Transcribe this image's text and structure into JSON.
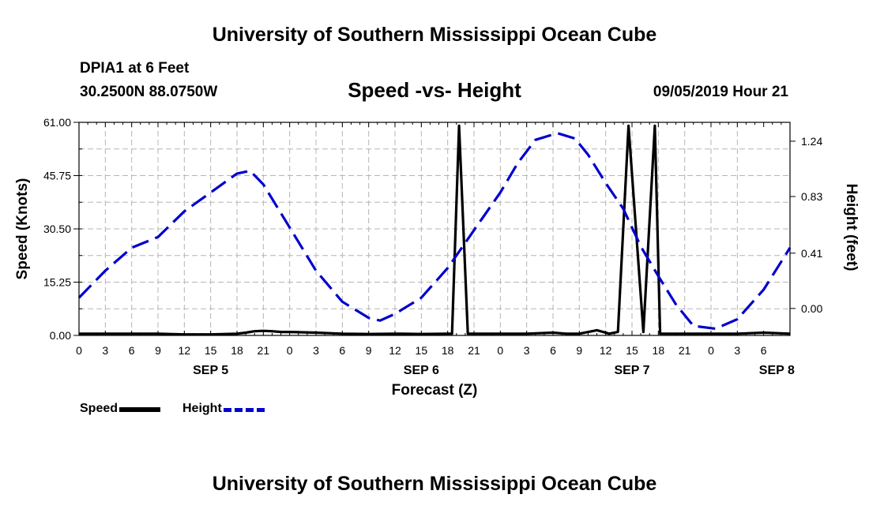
{
  "header": {
    "title": "University of Southern Mississippi Ocean Cube",
    "station": "DPIA1 at 6 Feet",
    "coords": "30.2500N 88.0750W",
    "chart_title": "Speed -vs- Height",
    "timestamp": "09/05/2019 Hour 21"
  },
  "footer": {
    "title": "University of Southern Mississippi Ocean Cube"
  },
  "legend": [
    {
      "label": "Speed",
      "color": "#000000",
      "style": "solid"
    },
    {
      "label": "Height",
      "color": "#0000cc",
      "style": "dashed"
    }
  ],
  "chart_data": {
    "type": "line",
    "title": "Speed -vs- Height",
    "xlabel": "Forecast (Z)",
    "ylabel": "Speed (Knots)",
    "y2label": "Height (feet)",
    "grid": true,
    "xlim": [
      0,
      81
    ],
    "x_tick_step": 3,
    "x_tick_labels": [
      "0",
      "3",
      "6",
      "9",
      "12",
      "15",
      "18",
      "21",
      "0",
      "3",
      "6",
      "9",
      "12",
      "15",
      "18",
      "21",
      "0",
      "3",
      "6",
      "9",
      "12",
      "15",
      "18",
      "21",
      "0",
      "3",
      "6"
    ],
    "day_labels": [
      {
        "hour": 15,
        "label": "SEP 5"
      },
      {
        "hour": 39,
        "label": "SEP 6"
      },
      {
        "hour": 63,
        "label": "SEP 7"
      },
      {
        "hour": 79.5,
        "label": "SEP 8"
      }
    ],
    "ylim": [
      0,
      61
    ],
    "y_ticks": [
      "0.00",
      "15.25",
      "30.50",
      "45.75",
      "61.00"
    ],
    "y2lim": [
      -0.2,
      1.38
    ],
    "y2_ticks": [
      "0.00",
      "0.41",
      "0.83",
      "1.24"
    ],
    "series": [
      {
        "name": "Speed",
        "axis": "left",
        "color": "#000000",
        "x": [
          0,
          3,
          6,
          9,
          12,
          15,
          18,
          19,
          20,
          21,
          22,
          23,
          24,
          27,
          30,
          33,
          36,
          39,
          42,
          42.5,
          43.3,
          44.3,
          45.3,
          46,
          48,
          51,
          54,
          55.5,
          57,
          59,
          60.4,
          61.4,
          62.6,
          64.3,
          65.6,
          66.2,
          67.2,
          68,
          69,
          72,
          75,
          78,
          81
        ],
        "y": [
          0.5,
          0.5,
          0.5,
          0.5,
          0.3,
          0.3,
          0.5,
          0.8,
          1.2,
          1.3,
          1.2,
          1.0,
          1.0,
          0.8,
          0.5,
          0.4,
          0.5,
          0.4,
          0.5,
          0.5,
          60,
          0.5,
          0.5,
          0.5,
          0.5,
          0.5,
          0.8,
          0.5,
          0.5,
          1.5,
          0.5,
          1.0,
          60,
          1.0,
          60,
          0.5,
          0.5,
          0.5,
          0.5,
          0.5,
          0.5,
          0.8,
          0.5
        ]
      },
      {
        "name": "Height",
        "axis": "right",
        "color": "#0000cc",
        "x": [
          0,
          3,
          6,
          9,
          12,
          15,
          18,
          19.5,
          21,
          24,
          27,
          30,
          33,
          34.3,
          36,
          39,
          42,
          45,
          48,
          50,
          52,
          54.5,
          56.5,
          58,
          60,
          62,
          64,
          66,
          68,
          70,
          72.5,
          75,
          78,
          81
        ],
        "y": [
          0.08,
          0.28,
          0.45,
          0.53,
          0.72,
          0.86,
          1.0,
          1.02,
          0.92,
          0.6,
          0.28,
          0.05,
          -0.07,
          -0.09,
          -0.04,
          0.08,
          0.3,
          0.58,
          0.86,
          1.08,
          1.25,
          1.3,
          1.26,
          1.14,
          0.93,
          0.74,
          0.46,
          0.24,
          0.03,
          -0.13,
          -0.15,
          -0.08,
          0.14,
          0.45
        ]
      }
    ]
  }
}
